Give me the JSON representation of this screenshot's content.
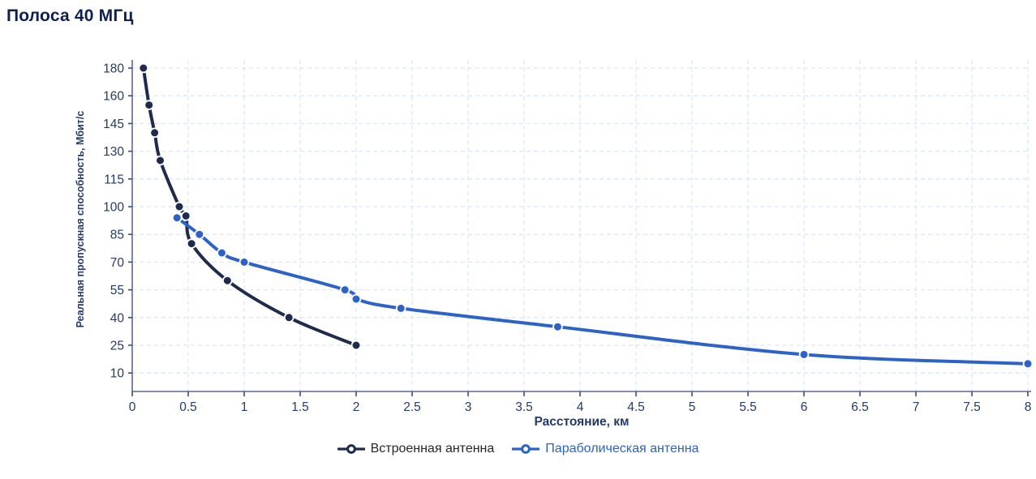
{
  "title": "Полоса 40 МГц",
  "chart_data": {
    "type": "line",
    "title": "Полоса 40 МГц",
    "xlabel": "Расстояние, км",
    "ylabel": "Реальная пропускная способность, Мбит/с",
    "x_ticks": [
      0,
      0.5,
      1,
      1.5,
      2,
      2.5,
      3,
      3.5,
      4,
      4.5,
      5,
      5.5,
      6,
      6.5,
      7,
      7.5,
      8
    ],
    "x_tick_labels": [
      "0",
      "0.5",
      "1",
      "1.5",
      "2",
      "2.5",
      "3",
      "3.5",
      "4",
      "4.5",
      "5",
      "5.5",
      "6",
      "6.5",
      "7",
      "7.5",
      "8"
    ],
    "y_ticks": [
      180,
      160,
      145,
      130,
      115,
      100,
      85,
      70,
      55,
      40,
      25,
      10
    ],
    "y_tick_labels": [
      "180",
      "160",
      "145",
      "130",
      "115",
      "100",
      "85",
      "70",
      "55",
      "40",
      "25",
      "10"
    ],
    "xlim": [
      0,
      8
    ],
    "grid": true,
    "legend_position": "bottom",
    "series": [
      {
        "name": "Встроенная антенна",
        "color": "#1e2b4d",
        "points": [
          [
            0.1,
            180
          ],
          [
            0.15,
            155
          ],
          [
            0.2,
            140
          ],
          [
            0.25,
            125
          ],
          [
            0.42,
            100
          ],
          [
            0.48,
            95
          ],
          [
            0.53,
            80
          ],
          [
            0.85,
            60
          ],
          [
            1.4,
            40
          ],
          [
            2,
            25
          ]
        ]
      },
      {
        "name": "Параболическая антенна",
        "color": "#2d62c8",
        "points": [
          [
            0.4,
            94
          ],
          [
            0.6,
            85
          ],
          [
            0.8,
            75
          ],
          [
            1,
            70
          ],
          [
            1.9,
            55
          ],
          [
            2,
            50
          ],
          [
            2.4,
            45
          ],
          [
            3.8,
            35
          ],
          [
            6,
            20
          ],
          [
            8,
            15
          ]
        ]
      }
    ],
    "colors": {
      "title_text": "#0d2150",
      "axis_line": "#5a6a8e",
      "tick_mark": "#3a4c74",
      "tick_label_text": "#253a66",
      "gridline": "#dce8f6",
      "legend_text_dark": "#26262e",
      "legend_text_blue": "#2b62c4",
      "background": "#ffffff"
    }
  }
}
